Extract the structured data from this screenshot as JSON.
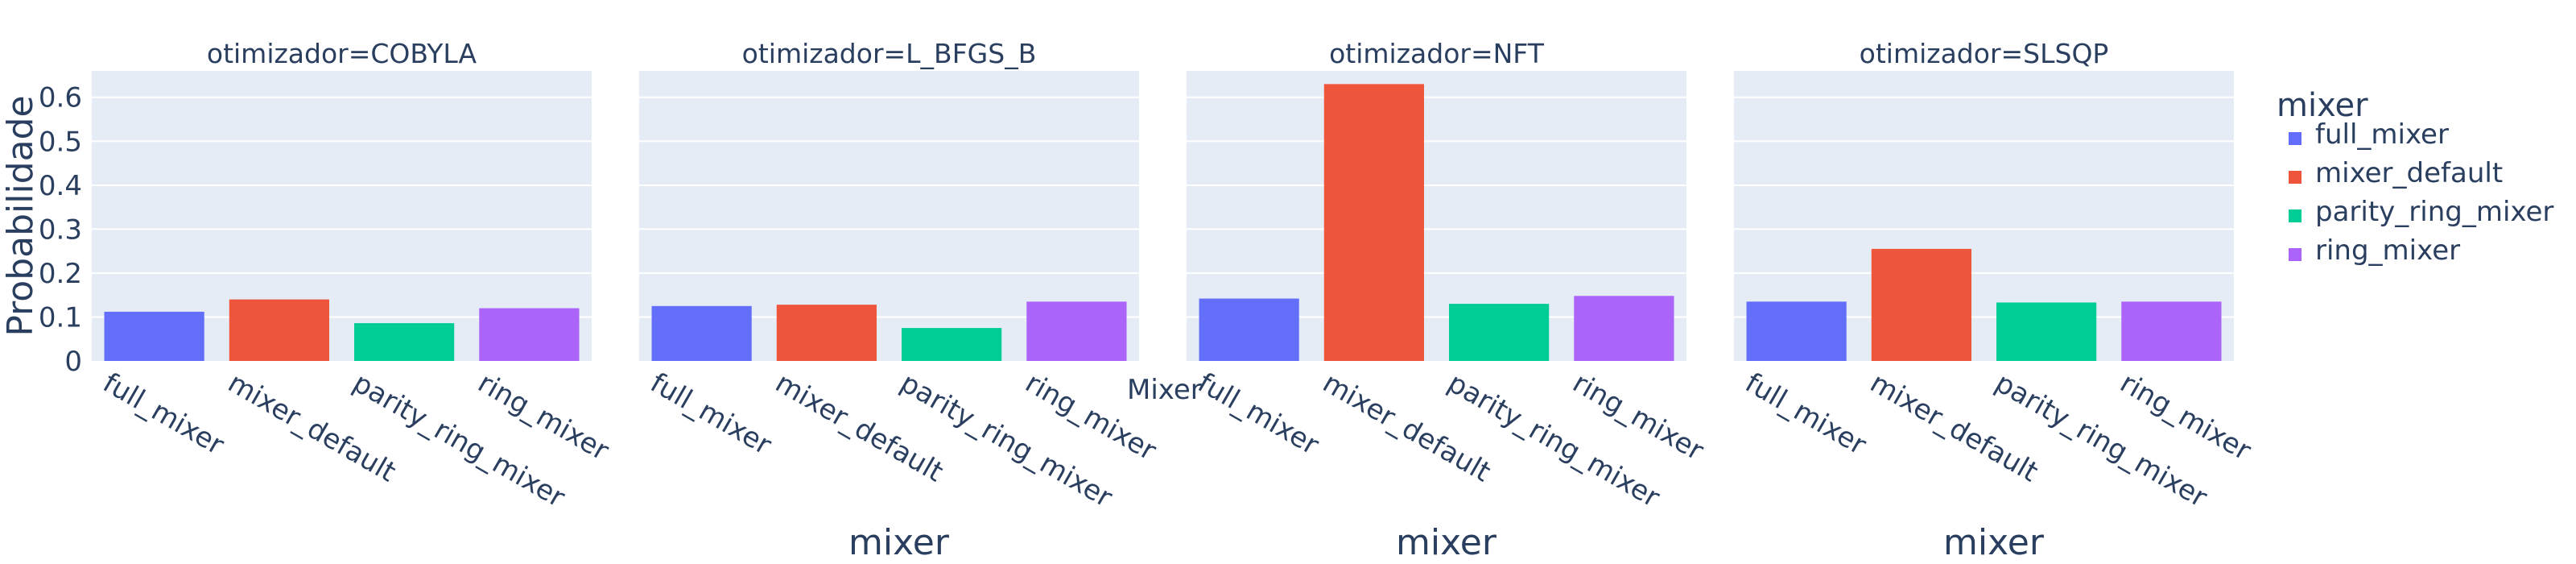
{
  "chart_data": {
    "type": "bar",
    "ylabel": "Probabilidade",
    "xlabel": "mixer",
    "extra_label": "Mixer",
    "ylim": [
      0,
      0.66
    ],
    "yticks": [
      0,
      0.1,
      0.2,
      0.3,
      0.4,
      0.5,
      0.6
    ],
    "ytick_labels": [
      "0",
      "0.1",
      "0.2",
      "0.3",
      "0.4",
      "0.5",
      "0.6"
    ],
    "grid": true,
    "legend": {
      "title": "mixer",
      "placement": "right",
      "entries": [
        "full_mixer",
        "mixer_default",
        "parity_ring_mixer",
        "ring_mixer"
      ]
    },
    "colors": {
      "full_mixer": "#636efa",
      "mixer_default": "#ef553b",
      "parity_ring_mixer": "#00cc96",
      "ring_mixer": "#ab63fa",
      "plot_bg": "#e5ecf6",
      "text": "#2a3f5f"
    },
    "categories": [
      "full_mixer",
      "mixer_default",
      "parity_ring_mixer",
      "ring_mixer"
    ],
    "facets": [
      {
        "title": "otimizador=COBYLA",
        "values": [
          0.112,
          0.14,
          0.086,
          0.12
        ],
        "show_xlabel": false
      },
      {
        "title": "otimizador=L_BFGS_B",
        "values": [
          0.125,
          0.128,
          0.075,
          0.135
        ],
        "show_xlabel": true
      },
      {
        "title": "otimizador=NFT",
        "values": [
          0.142,
          0.63,
          0.13,
          0.148
        ],
        "show_xlabel": true
      },
      {
        "title": "otimizador=SLSQP",
        "values": [
          0.135,
          0.255,
          0.133,
          0.135
        ],
        "show_xlabel": true
      }
    ]
  }
}
